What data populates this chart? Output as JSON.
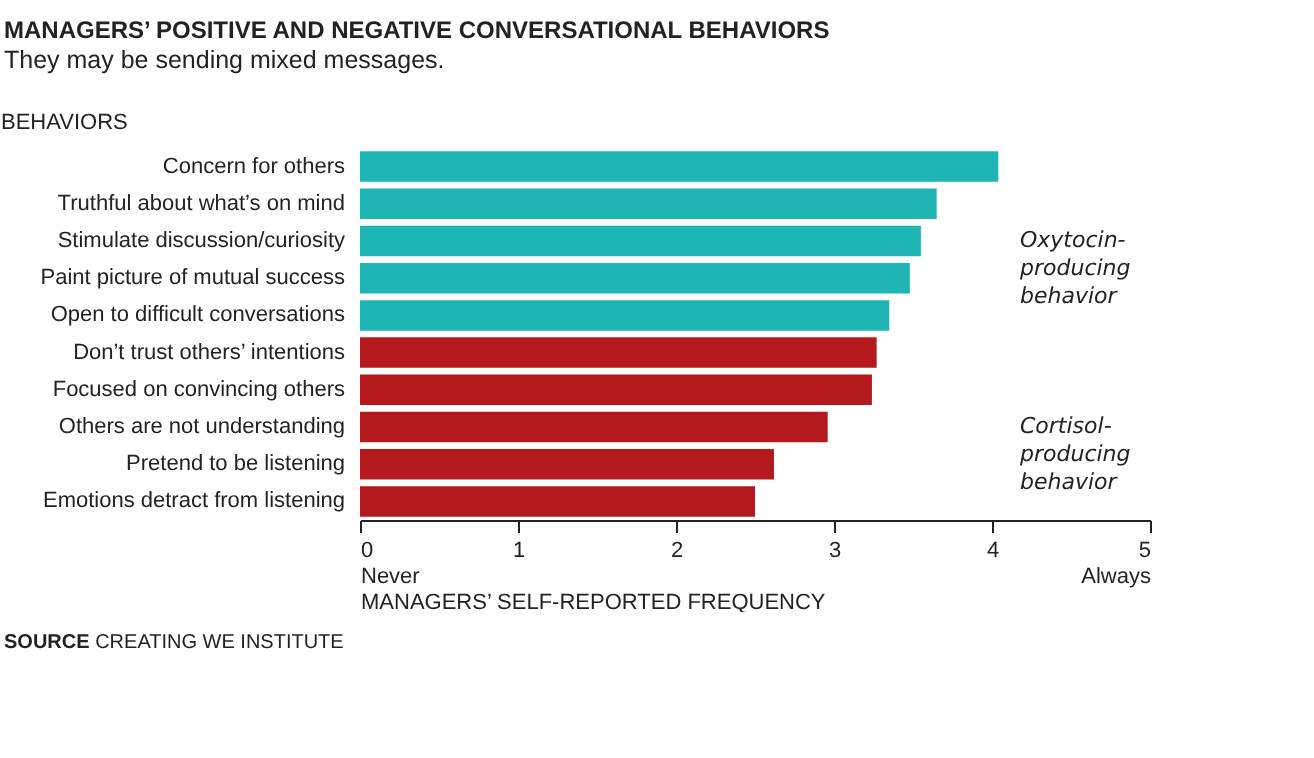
{
  "chart_data": {
    "type": "bar",
    "orientation": "horizontal",
    "title": "MANAGERS’ POSITIVE AND NEGATIVE CONVERSATIONAL BEHAVIORS",
    "subtitle": "They may be sending mixed messages.",
    "ylabel": "BEHAVIORS",
    "xlabel": "MANAGERS’ SELF-REPORTED FREQUENCY",
    "categories": [
      "Concern for others",
      "Truthful about what’s on mind",
      "Stimulate discussion/curiosity",
      "Paint picture of mutual success",
      "Open to difficult conversations",
      "Don’t trust others’ intentions",
      "Focused on convincing others",
      "Others are not understanding",
      "Pretend to be listening",
      "Emotions detract from listening"
    ],
    "series": [
      {
        "name": "Oxytocin-producing behavior",
        "color": "#1fb5b5",
        "values": [
          4.04,
          3.65,
          3.55,
          3.48,
          3.35,
          null,
          null,
          null,
          null,
          null
        ]
      },
      {
        "name": "Cortisol-producing behavior",
        "color": "#b3191d",
        "values": [
          null,
          null,
          null,
          null,
          null,
          3.27,
          3.24,
          2.96,
          2.62,
          2.5
        ]
      }
    ],
    "xlim": [
      0,
      5
    ],
    "xticks": [
      {
        "value": 0,
        "label": "0\nNever"
      },
      1,
      2,
      3,
      4,
      {
        "value": 5,
        "label": "5\nAlways"
      }
    ],
    "grid": false,
    "legend": false,
    "annotations": [
      "SOURCE CREATING WE INSTITUTE"
    ]
  }
}
